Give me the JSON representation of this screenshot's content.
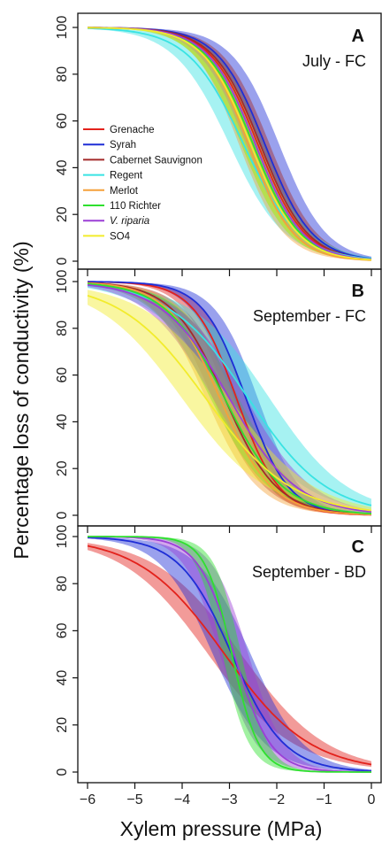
{
  "figure": {
    "ylabel": "Percentage loss of conductivity  (%)",
    "xlabel": "Xylem pressure (MPa)"
  },
  "legend": [
    {
      "name": "Grenache",
      "color": "#e3221c",
      "italic": false
    },
    {
      "name": "Syrah",
      "color": "#1f2ed6",
      "italic": false
    },
    {
      "name": "Cabernet Sauvignon",
      "color": "#a32a2a",
      "italic": false
    },
    {
      "name": "Regent",
      "color": "#39e3e3",
      "italic": false
    },
    {
      "name": "Merlot",
      "color": "#f5a13a",
      "italic": false
    },
    {
      "name": "110 Richter",
      "color": "#2fe02f",
      "italic": false
    },
    {
      "name": "V. riparia",
      "color": "#9b3fd6",
      "italic": true
    },
    {
      "name": "SO4",
      "color": "#f2ec2c",
      "italic": false
    }
  ],
  "chart_data": [
    {
      "type": "line",
      "panel": "A",
      "title": "July - FC",
      "xlim": [
        -6,
        0
      ],
      "ylim": [
        0,
        100
      ],
      "xticks": [
        -6,
        -5,
        -4,
        -3,
        -2,
        -1,
        0
      ],
      "yticks": [
        0,
        20,
        40,
        60,
        80,
        100
      ],
      "show_x_ticklabels": false,
      "series": [
        {
          "name": "Grenache",
          "color": "#e3221c",
          "p50": -2.4,
          "slope": 2.0,
          "band": 0.15
        },
        {
          "name": "Syrah",
          "color": "#1f2ed6",
          "p50": -2.25,
          "slope": 2.0,
          "band": 0.3
        },
        {
          "name": "Cabernet Sauvignon",
          "color": "#a32a2a",
          "p50": -2.35,
          "slope": 2.0,
          "band": 0.2
        },
        {
          "name": "Regent",
          "color": "#39e3e3",
          "p50": -2.7,
          "slope": 1.7,
          "band": 0.3
        },
        {
          "name": "Merlot",
          "color": "#f5a13a",
          "p50": -2.6,
          "slope": 2.1,
          "band": 0.2
        },
        {
          "name": "110 Richter",
          "color": "#2fe02f",
          "p50": -2.5,
          "slope": 2.0,
          "band": 0.25
        },
        {
          "name": "V. riparia",
          "color": "#9b3fd6",
          "p50": -2.45,
          "slope": 2.0,
          "band": 0.2
        },
        {
          "name": "SO4",
          "color": "#f2ec2c",
          "p50": -2.55,
          "slope": 2.0,
          "band": 0.2
        }
      ]
    },
    {
      "type": "line",
      "panel": "B",
      "title": "September - FC",
      "xlim": [
        -6,
        0
      ],
      "ylim": [
        0,
        100
      ],
      "xticks": [
        -6,
        -5,
        -4,
        -3,
        -2,
        -1,
        0
      ],
      "yticks": [
        0,
        20,
        40,
        60,
        80,
        100
      ],
      "show_x_ticklabels": false,
      "series": [
        {
          "name": "Grenache",
          "color": "#e3221c",
          "p50": -2.85,
          "slope": 2.2,
          "band": 0.2
        },
        {
          "name": "Syrah",
          "color": "#1f2ed6",
          "p50": -2.65,
          "slope": 2.2,
          "band": 0.25
        },
        {
          "name": "Cabernet Sauvignon",
          "color": "#a32a2a",
          "p50": -3.1,
          "slope": 1.8,
          "band": 0.25
        },
        {
          "name": "Regent",
          "color": "#39e3e3",
          "p50": -2.6,
          "slope": 1.2,
          "band": 0.45
        },
        {
          "name": "Merlot",
          "color": "#f5a13a",
          "p50": -3.2,
          "slope": 1.8,
          "band": 0.3
        },
        {
          "name": "110 Richter",
          "color": "#2fe02f",
          "p50": -3.1,
          "slope": 1.6,
          "band": 0.3
        },
        {
          "name": "V. riparia",
          "color": "#9b3fd6",
          "p50": -3.0,
          "slope": 1.4,
          "band": 0.35
        },
        {
          "name": "SO4",
          "color": "#f2ec2c",
          "p50": -3.5,
          "slope": 1.1,
          "band": 0.5
        }
      ]
    },
    {
      "type": "line",
      "panel": "C",
      "title": "September - BD",
      "xlim": [
        -6,
        0
      ],
      "ylim": [
        0,
        100
      ],
      "xticks": [
        -6,
        -5,
        -4,
        -3,
        -2,
        -1,
        0
      ],
      "yticks": [
        0,
        20,
        40,
        60,
        80,
        100
      ],
      "show_x_ticklabels": true,
      "series": [
        {
          "name": "Grenache",
          "color": "#e3221c",
          "p50": -3.1,
          "slope": 1.1,
          "band": 0.35
        },
        {
          "name": "Syrah",
          "color": "#1f2ed6",
          "p50": -2.95,
          "slope": 1.8,
          "band": 0.4
        },
        {
          "name": "V. riparia",
          "color": "#9b3fd6",
          "p50": -2.9,
          "slope": 2.6,
          "band": 0.3
        },
        {
          "name": "110 Richter",
          "color": "#2fe02f",
          "p50": -2.95,
          "slope": 3.5,
          "band": 0.2
        }
      ]
    }
  ]
}
